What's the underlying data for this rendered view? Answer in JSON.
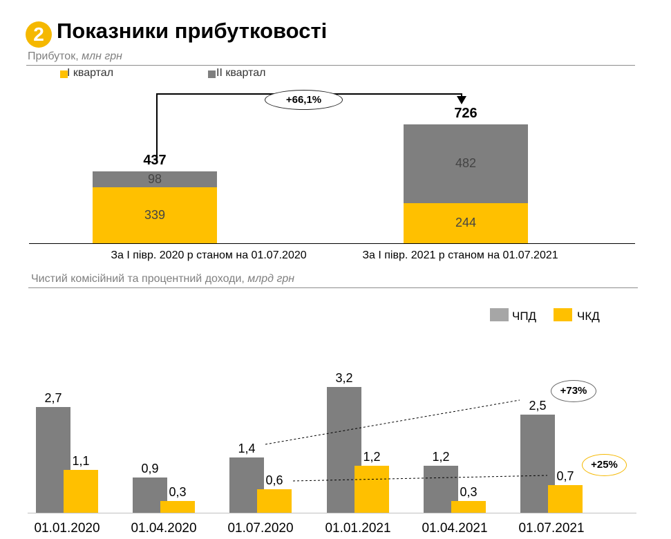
{
  "header": {
    "badge_number": "2",
    "title": "Показники прибутковості"
  },
  "profit_section": {
    "subtitle_main": "Прибуток,",
    "subtitle_unit": "млн грн",
    "legend": [
      {
        "label": "I квартал",
        "color": "#ffc000"
      },
      {
        "label": "II квартал",
        "color": "#7f7f7f"
      }
    ],
    "growth_label": "+66,1%"
  },
  "income_section": {
    "subtitle_main": "Чистий комісійний та процентний доходи,",
    "subtitle_unit": "млрд грн",
    "legend": [
      {
        "label": "ЧПД",
        "color": "#a6a6a6"
      },
      {
        "label": "ЧКД",
        "color": "#ffc000"
      }
    ],
    "badge_npd": "+73%",
    "badge_nkd": "+25%"
  },
  "chart_data": [
    {
      "type": "bar",
      "stacked": true,
      "categories": [
        "За I півр. 2020 р станом на 01.07.2020",
        "За I півр. 2021 р станом на 01.07.2021"
      ],
      "series": [
        {
          "name": "I квартал",
          "values": [
            339,
            244
          ],
          "labels": [
            "339",
            "244"
          ],
          "color": "#ffc000"
        },
        {
          "name": "II квартал",
          "values": [
            98,
            482
          ],
          "labels": [
            "98",
            "482"
          ],
          "color": "#7f7f7f"
        }
      ],
      "totals": [
        437,
        726
      ],
      "total_labels": [
        "437",
        "726"
      ],
      "annotation": "+66,1%"
    },
    {
      "type": "bar",
      "categories": [
        "01.01.2020",
        "01.04.2020",
        "01.07.2020",
        "01.01.2021",
        "01.04.2021",
        "01.07.2021"
      ],
      "series": [
        {
          "name": "ЧПД",
          "values": [
            2.7,
            0.9,
            1.4,
            3.2,
            1.2,
            2.5
          ],
          "labels": [
            "2,7",
            "0,9",
            "1,4",
            "3,2",
            "1,2",
            "2,5"
          ],
          "color": "#7f7f7f"
        },
        {
          "name": "ЧКД",
          "values": [
            1.1,
            0.3,
            0.6,
            1.2,
            0.3,
            0.7
          ],
          "labels": [
            "1,1",
            "0,3",
            "0,6",
            "1,2",
            "0,3",
            "0,7"
          ],
          "color": "#ffc000"
        }
      ],
      "annotations": [
        "+73%",
        "+25%"
      ]
    }
  ]
}
